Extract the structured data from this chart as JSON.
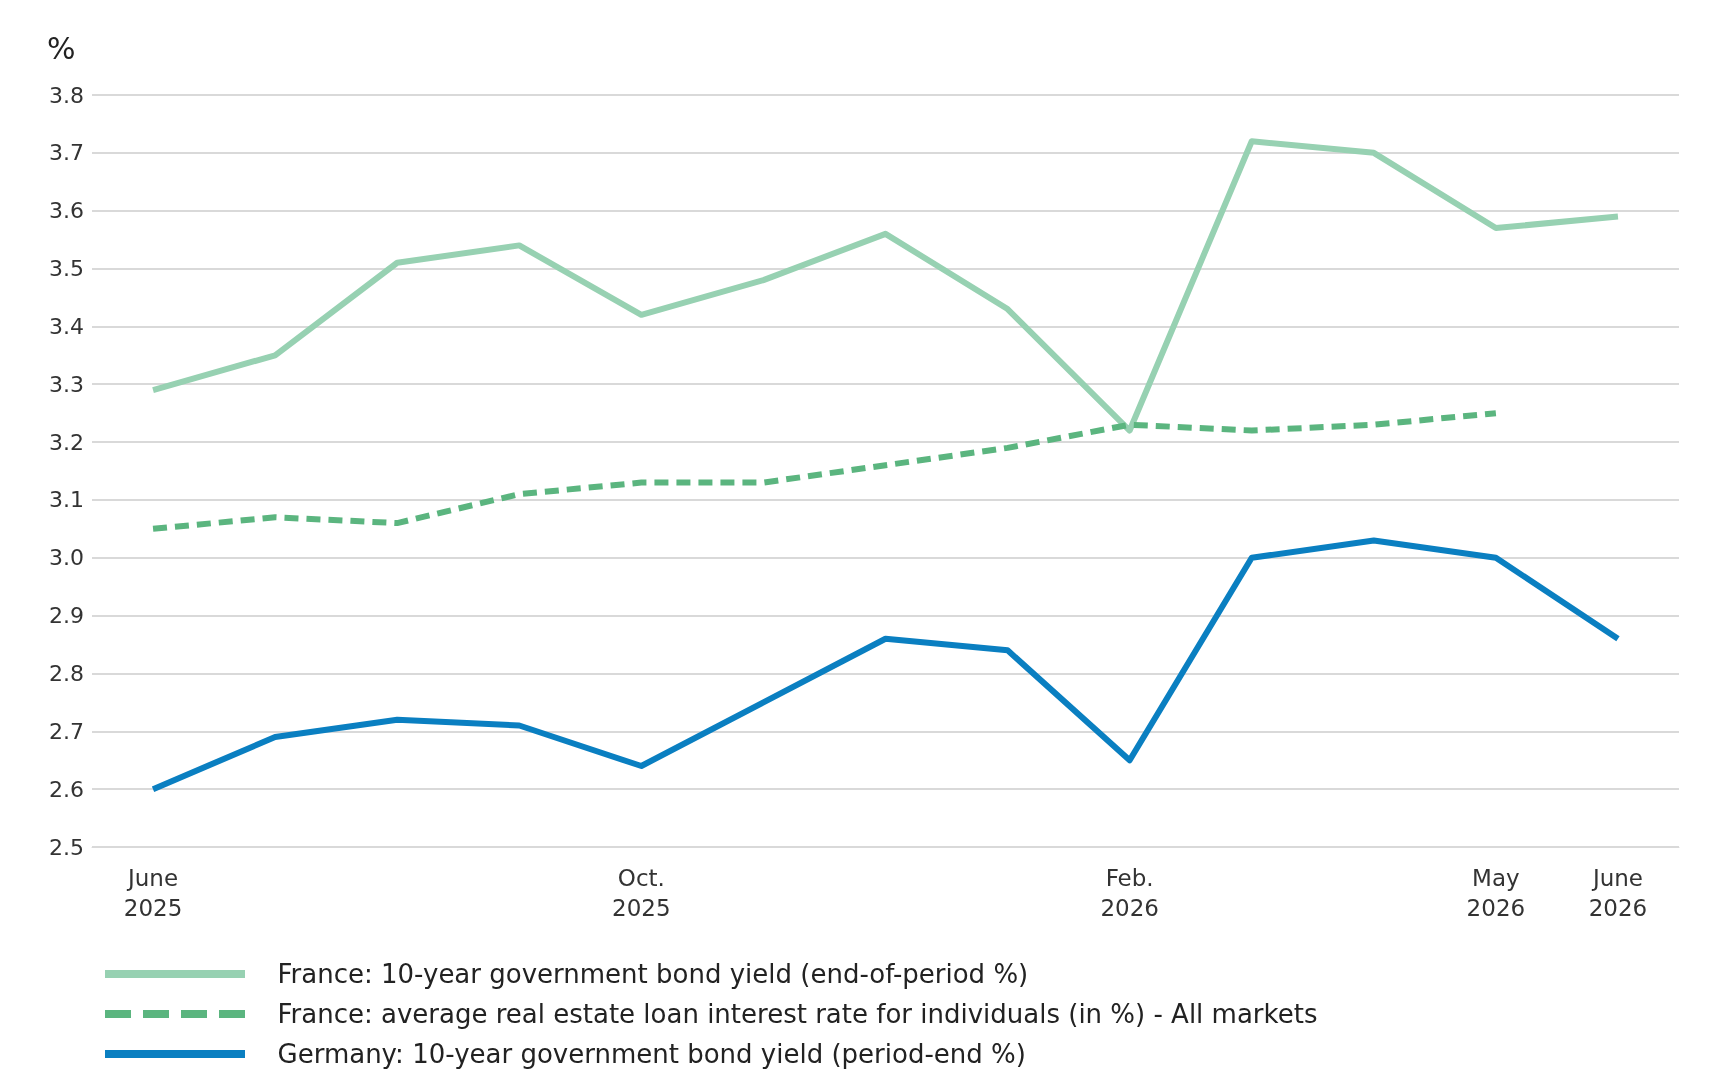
{
  "chart_data": {
    "type": "line",
    "ylabel": "%",
    "categories": [
      "June\n2025",
      null,
      null,
      null,
      "Oct.\n2025",
      null,
      null,
      null,
      "Feb.\n2026",
      null,
      null,
      "May\n2026",
      "June\n2026"
    ],
    "series": [
      {
        "name": "France: 10-year government bond yield (end-of-period %)",
        "color": "#97d1b2",
        "line_style": "solid",
        "values": [
          3.29,
          3.35,
          3.51,
          3.54,
          3.42,
          3.48,
          3.56,
          3.43,
          3.22,
          3.72,
          3.7,
          3.57,
          3.59
        ]
      },
      {
        "name": "France: average real estate loan interest rate for individuals (in %) - All markets",
        "color": "#5bb57f",
        "line_style": "dashed",
        "values": [
          3.05,
          3.07,
          3.06,
          3.11,
          3.13,
          3.13,
          3.16,
          3.19,
          3.23,
          3.22,
          3.23,
          3.25,
          null
        ]
      },
      {
        "name": "Germany: 10-year government bond yield (period-end %)",
        "color": "#0a7fc1",
        "line_style": "solid",
        "values": [
          2.6,
          2.69,
          2.72,
          2.71,
          2.64,
          2.75,
          2.86,
          2.84,
          2.65,
          3.0,
          3.03,
          3.0,
          2.86
        ]
      }
    ],
    "ylim": [
      2.5,
      3.8
    ],
    "yticks": [
      2.5,
      2.6,
      2.7,
      2.8,
      2.9,
      {
        "value": 3,
        "label": "3.0"
      },
      3.1,
      3.2,
      3.3,
      3.4,
      3.5,
      3.6,
      3.7,
      3.8
    ],
    "grid": "y",
    "legend": "bottom",
    "marker": "none"
  }
}
